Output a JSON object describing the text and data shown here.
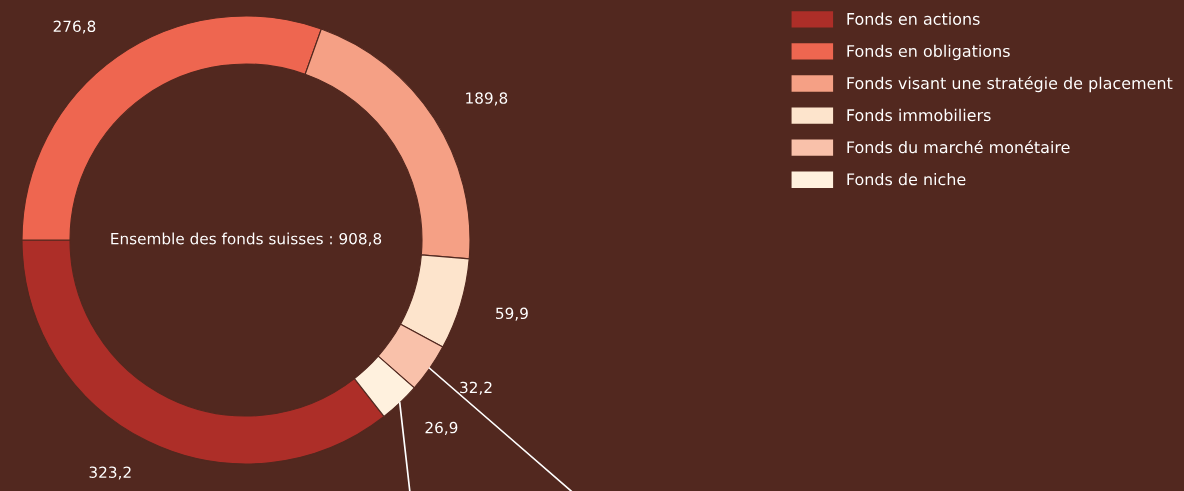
{
  "chart_data": {
    "type": "donut",
    "categories": [
      "Fonds en actions",
      "Fonds en obligations",
      "Fonds visant une stratégie de placement",
      "Fonds immobiliers",
      "Fonds du marché monétaire",
      "Fonds de niche"
    ],
    "values": [
      323.2,
      276.8,
      189.8,
      59.9,
      32.2,
      26.9
    ],
    "colors": [
      "#ad2e28",
      "#ee6650",
      "#f5a085",
      "#fde4cc",
      "#f9c1aa",
      "#fff1de"
    ],
    "value_labels": [
      "323,2",
      "276,8",
      "189,8",
      "59,9",
      "32,2",
      "26,9"
    ],
    "annotations": [
      "Ensemble des fonds suisses : 908,8"
    ],
    "legend": "top right"
  }
}
